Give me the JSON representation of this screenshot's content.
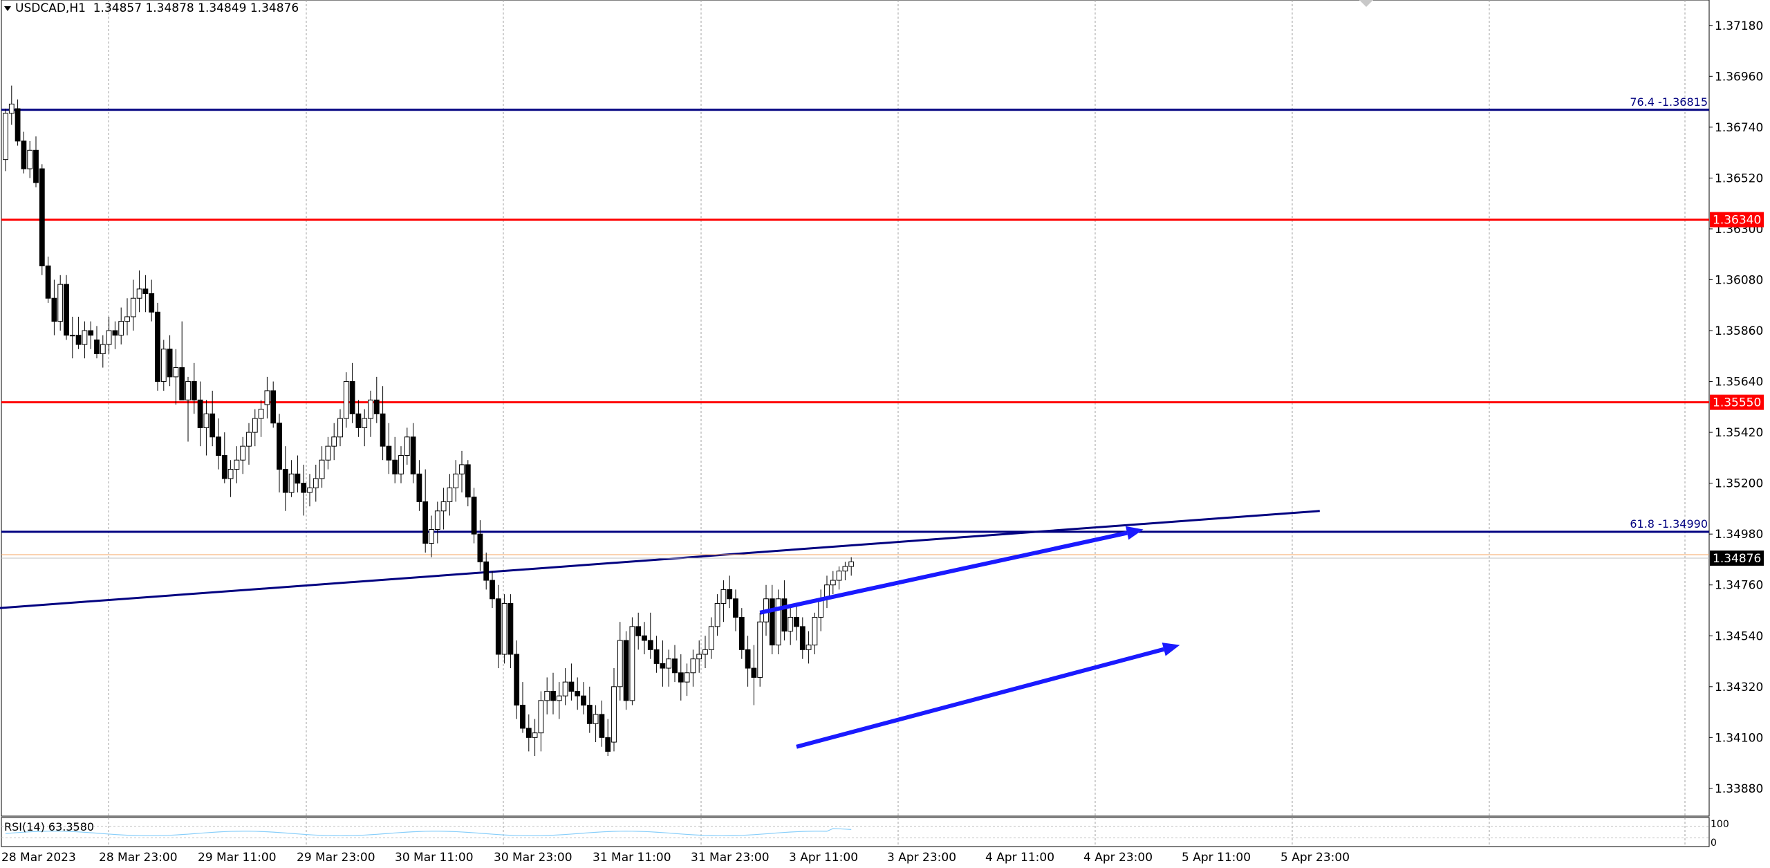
{
  "header": {
    "symbol": "USDCAD,H1",
    "ohlc": "1.34857 1.34878 1.34849 1.34876"
  },
  "rsi_panel": {
    "label": "RSI(14) 63.3580",
    "scale_top": "100",
    "scale_bottom": "0",
    "color": "#87cefa"
  },
  "colors": {
    "fib_line": "#000080",
    "sr_line": "#ff0000",
    "trendline": "#000080",
    "arrow": "#1a1aff",
    "bull_candle": "#ffffff",
    "bear_candle": "#000000",
    "grid": "#a0a0a0"
  },
  "chart_data": {
    "type": "candlestick",
    "symbol": "USDCAD",
    "timeframe": "H1",
    "ylim": [
      1.3376,
      1.3729
    ],
    "y_ticks": [
      "1.37180",
      "1.36960",
      "1.36740",
      "1.36520",
      "1.36300",
      "1.36080",
      "1.35860",
      "1.35640",
      "1.35420",
      "1.35200",
      "1.34980",
      "1.34760",
      "1.34540",
      "1.34320",
      "1.34100",
      "1.33880"
    ],
    "x_tick_labels": [
      "28 Mar 2023",
      "28 Mar 23:00",
      "29 Mar 11:00",
      "29 Mar 23:00",
      "30 Mar 11:00",
      "30 Mar 23:00",
      "31 Mar 11:00",
      "31 Mar 23:00",
      "3 Apr 11:00",
      "3 Apr 23:00",
      "4 Apr 11:00",
      "4 Apr 23:00",
      "5 Apr 11:00",
      "5 Apr 23:00"
    ],
    "current_price": "1.34876",
    "horizontal_levels": [
      {
        "kind": "fib",
        "label": "76.4 -1.36815",
        "price": 1.36815
      },
      {
        "kind": "support_resistance",
        "label": "1.36340",
        "price": 1.3634
      },
      {
        "kind": "support_resistance",
        "label": "1.35550",
        "price": 1.3555
      },
      {
        "kind": "fib",
        "label": "61.8 -1.34990",
        "price": 1.3499
      }
    ],
    "trendlines": [
      {
        "kind": "line",
        "start": [
          -1,
          1.3466
        ],
        "end": [
          216,
          1.3508
        ]
      }
    ],
    "arrows": [
      {
        "start": [
          124,
          1.3464
        ],
        "end": [
          187,
          1.35
        ]
      },
      {
        "start": [
          130,
          1.3406
        ],
        "end": [
          193,
          1.345
        ]
      }
    ],
    "candles": [
      [
        1.366,
        1.3682,
        1.3655,
        1.368
      ],
      [
        1.368,
        1.3692,
        1.3675,
        1.3684
      ],
      [
        1.3682,
        1.3686,
        1.3666,
        1.3668
      ],
      [
        1.3668,
        1.3672,
        1.3654,
        1.3656
      ],
      [
        1.3656,
        1.3668,
        1.3652,
        1.3664
      ],
      [
        1.3664,
        1.367,
        1.3648,
        1.365
      ],
      [
        1.3656,
        1.3658,
        1.361,
        1.3614
      ],
      [
        1.3614,
        1.3618,
        1.3598,
        1.36
      ],
      [
        1.36,
        1.3608,
        1.3584,
        1.359
      ],
      [
        1.359,
        1.361,
        1.3586,
        1.3606
      ],
      [
        1.3606,
        1.361,
        1.3582,
        1.3584
      ],
      [
        1.3584,
        1.3592,
        1.3574,
        1.3584
      ],
      [
        1.3584,
        1.3592,
        1.3578,
        1.358
      ],
      [
        1.358,
        1.359,
        1.3574,
        1.3586
      ],
      [
        1.3586,
        1.359,
        1.3578,
        1.3584
      ],
      [
        1.3582,
        1.3588,
        1.3574,
        1.3576
      ],
      [
        1.3576,
        1.3584,
        1.357,
        1.358
      ],
      [
        1.358,
        1.3592,
        1.3576,
        1.3586
      ],
      [
        1.3586,
        1.359,
        1.3578,
        1.3584
      ],
      [
        1.3584,
        1.3596,
        1.358,
        1.359
      ],
      [
        1.359,
        1.36,
        1.3584,
        1.3592
      ],
      [
        1.3592,
        1.3608,
        1.3586,
        1.36
      ],
      [
        1.36,
        1.3612,
        1.3594,
        1.3604
      ],
      [
        1.3604,
        1.361,
        1.3594,
        1.3602
      ],
      [
        1.3602,
        1.3608,
        1.359,
        1.3594
      ],
      [
        1.3594,
        1.3598,
        1.356,
        1.3564
      ],
      [
        1.3564,
        1.3582,
        1.356,
        1.3578
      ],
      [
        1.3578,
        1.3584,
        1.3562,
        1.3566
      ],
      [
        1.3566,
        1.3578,
        1.3554,
        1.357
      ],
      [
        1.357,
        1.359,
        1.3556,
        1.3556
      ],
      [
        1.3556,
        1.3566,
        1.3538,
        1.3564
      ],
      [
        1.3564,
        1.3572,
        1.355,
        1.3556
      ],
      [
        1.3556,
        1.3564,
        1.3536,
        1.3544
      ],
      [
        1.3544,
        1.3556,
        1.3532,
        1.355
      ],
      [
        1.355,
        1.356,
        1.3536,
        1.354
      ],
      [
        1.354,
        1.3548,
        1.3526,
        1.3532
      ],
      [
        1.3532,
        1.3542,
        1.352,
        1.3522
      ],
      [
        1.3522,
        1.353,
        1.3514,
        1.3526
      ],
      [
        1.3526,
        1.3536,
        1.352,
        1.353
      ],
      [
        1.353,
        1.354,
        1.3524,
        1.3536
      ],
      [
        1.3536,
        1.3546,
        1.3528,
        1.3542
      ],
      [
        1.3542,
        1.3552,
        1.3536,
        1.3548
      ],
      [
        1.3548,
        1.3556,
        1.354,
        1.3552
      ],
      [
        1.3554,
        1.3566,
        1.3548,
        1.356
      ],
      [
        1.356,
        1.3564,
        1.3544,
        1.3546
      ],
      [
        1.3546,
        1.355,
        1.3516,
        1.3526
      ],
      [
        1.3526,
        1.3536,
        1.3508,
        1.3516
      ],
      [
        1.3516,
        1.353,
        1.3514,
        1.3524
      ],
      [
        1.3524,
        1.3532,
        1.3516,
        1.352
      ],
      [
        1.352,
        1.3528,
        1.3506,
        1.3516
      ],
      [
        1.3516,
        1.3524,
        1.351,
        1.3518
      ],
      [
        1.3518,
        1.3528,
        1.3512,
        1.3522
      ],
      [
        1.3522,
        1.3536,
        1.3518,
        1.353
      ],
      [
        1.353,
        1.354,
        1.3526,
        1.3536
      ],
      [
        1.3536,
        1.3546,
        1.353,
        1.354
      ],
      [
        1.354,
        1.3552,
        1.3536,
        1.3548
      ],
      [
        1.3548,
        1.3568,
        1.3544,
        1.3564
      ],
      [
        1.3564,
        1.3572,
        1.3546,
        1.355
      ],
      [
        1.355,
        1.3556,
        1.354,
        1.3544
      ],
      [
        1.3544,
        1.3552,
        1.3536,
        1.3548
      ],
      [
        1.3548,
        1.356,
        1.354,
        1.3556
      ],
      [
        1.3556,
        1.3566,
        1.3546,
        1.355
      ],
      [
        1.355,
        1.3562,
        1.353,
        1.3536
      ],
      [
        1.3536,
        1.3546,
        1.3524,
        1.353
      ],
      [
        1.353,
        1.354,
        1.352,
        1.3524
      ],
      [
        1.3524,
        1.3536,
        1.352,
        1.3532
      ],
      [
        1.3532,
        1.3544,
        1.3528,
        1.354
      ],
      [
        1.354,
        1.3546,
        1.352,
        1.3524
      ],
      [
        1.3524,
        1.353,
        1.3508,
        1.3512
      ],
      [
        1.3512,
        1.3526,
        1.349,
        1.3494
      ],
      [
        1.3494,
        1.3506,
        1.3488,
        1.35
      ],
      [
        1.35,
        1.3512,
        1.3494,
        1.3508
      ],
      [
        1.3508,
        1.3518,
        1.35,
        1.3512
      ],
      [
        1.3512,
        1.3524,
        1.3506,
        1.3518
      ],
      [
        1.3518,
        1.353,
        1.3512,
        1.3524
      ],
      [
        1.3524,
        1.3534,
        1.3516,
        1.3528
      ],
      [
        1.3528,
        1.353,
        1.351,
        1.3514
      ],
      [
        1.3514,
        1.3518,
        1.3494,
        1.3498
      ],
      [
        1.3498,
        1.3504,
        1.3482,
        1.3486
      ],
      [
        1.3486,
        1.349,
        1.3474,
        1.3478
      ],
      [
        1.3478,
        1.3482,
        1.3466,
        1.347
      ],
      [
        1.347,
        1.3476,
        1.344,
        1.3446
      ],
      [
        1.3446,
        1.3472,
        1.3442,
        1.3468
      ],
      [
        1.3468,
        1.3472,
        1.344,
        1.3446
      ],
      [
        1.3446,
        1.3452,
        1.3418,
        1.3424
      ],
      [
        1.3424,
        1.3434,
        1.3412,
        1.3414
      ],
      [
        1.3414,
        1.342,
        1.3404,
        1.341
      ],
      [
        1.341,
        1.3418,
        1.3402,
        1.3412
      ],
      [
        1.3412,
        1.343,
        1.3404,
        1.3426
      ],
      [
        1.3426,
        1.3436,
        1.342,
        1.343
      ],
      [
        1.343,
        1.3438,
        1.342,
        1.3426
      ],
      [
        1.3426,
        1.3434,
        1.3418,
        1.3428
      ],
      [
        1.3428,
        1.344,
        1.3424,
        1.3434
      ],
      [
        1.3434,
        1.3442,
        1.3426,
        1.343
      ],
      [
        1.343,
        1.3436,
        1.3422,
        1.3428
      ],
      [
        1.3428,
        1.3434,
        1.342,
        1.3424
      ],
      [
        1.3424,
        1.3432,
        1.3412,
        1.3416
      ],
      [
        1.3416,
        1.3424,
        1.3408,
        1.342
      ],
      [
        1.342,
        1.3426,
        1.3406,
        1.341
      ],
      [
        1.341,
        1.3418,
        1.3402,
        1.3404
      ],
      [
        1.3408,
        1.344,
        1.3404,
        1.3432
      ],
      [
        1.3432,
        1.346,
        1.3426,
        1.3452
      ],
      [
        1.3452,
        1.3456,
        1.3422,
        1.3426
      ],
      [
        1.3426,
        1.3462,
        1.3424,
        1.3458
      ],
      [
        1.3458,
        1.3464,
        1.3448,
        1.3454
      ],
      [
        1.3454,
        1.346,
        1.3446,
        1.3452
      ],
      [
        1.3452,
        1.3464,
        1.3444,
        1.3448
      ],
      [
        1.3448,
        1.3454,
        1.3438,
        1.3442
      ],
      [
        1.3442,
        1.3452,
        1.3432,
        1.344
      ],
      [
        1.344,
        1.3448,
        1.3432,
        1.3444
      ],
      [
        1.3444,
        1.345,
        1.3434,
        1.3438
      ],
      [
        1.3438,
        1.3446,
        1.3426,
        1.3434
      ],
      [
        1.3434,
        1.3442,
        1.3428,
        1.3438
      ],
      [
        1.3438,
        1.3448,
        1.3432,
        1.3444
      ],
      [
        1.3444,
        1.3452,
        1.3438,
        1.3446
      ],
      [
        1.3446,
        1.3454,
        1.344,
        1.3448
      ],
      [
        1.3448,
        1.3462,
        1.3444,
        1.3458
      ],
      [
        1.3458,
        1.3472,
        1.3454,
        1.3468
      ],
      [
        1.3468,
        1.3478,
        1.346,
        1.3474
      ],
      [
        1.3474,
        1.348,
        1.3466,
        1.347
      ],
      [
        1.347,
        1.3474,
        1.3456,
        1.3462
      ],
      [
        1.3462,
        1.3466,
        1.3444,
        1.3448
      ],
      [
        1.3448,
        1.3454,
        1.3432,
        1.344
      ],
      [
        1.344,
        1.345,
        1.3424,
        1.3436
      ],
      [
        1.3436,
        1.3464,
        1.3432,
        1.346
      ],
      [
        1.346,
        1.3476,
        1.3454,
        1.347
      ],
      [
        1.347,
        1.3476,
        1.3446,
        1.345
      ],
      [
        1.345,
        1.3474,
        1.3446,
        1.347
      ],
      [
        1.347,
        1.3478,
        1.3452,
        1.3456
      ],
      [
        1.3456,
        1.3466,
        1.345,
        1.3462
      ],
      [
        1.3462,
        1.3468,
        1.3452,
        1.3458
      ],
      [
        1.3458,
        1.3462,
        1.3444,
        1.3448
      ],
      [
        1.3448,
        1.3456,
        1.3442,
        1.345
      ],
      [
        1.345,
        1.3464,
        1.3446,
        1.3462
      ],
      [
        1.3462,
        1.3474,
        1.3456,
        1.347
      ],
      [
        1.347,
        1.348,
        1.3466,
        1.3476
      ],
      [
        1.3476,
        1.3482,
        1.3472,
        1.3478
      ],
      [
        1.3478,
        1.3484,
        1.3474,
        1.3482
      ],
      [
        1.3482,
        1.3486,
        1.3478,
        1.3484
      ],
      [
        1.3484,
        1.3488,
        1.348,
        1.3486
      ]
    ]
  }
}
